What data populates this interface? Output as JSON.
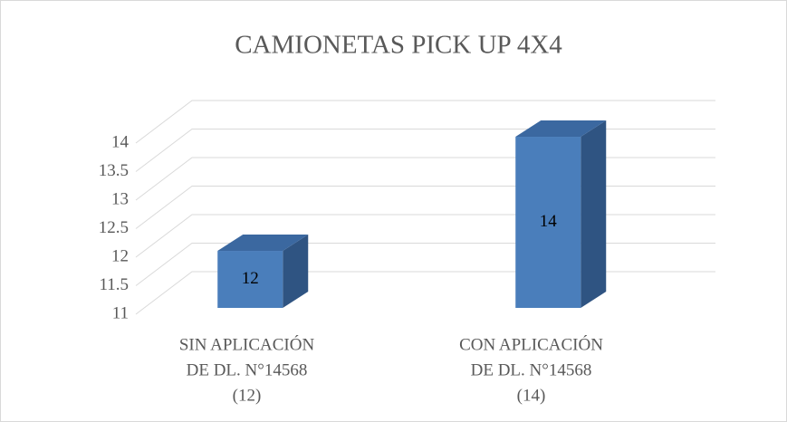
{
  "chart_data": {
    "type": "bar3d",
    "title": "CAMIONETAS PICK UP 4X4",
    "categories": [
      [
        "SIN APLICACIÓN",
        "DE DL. N°14568",
        "(12)"
      ],
      [
        "CON APLICACIÓN",
        "DE DL. N°14568",
        "(14)"
      ]
    ],
    "values": [
      12,
      14
    ],
    "color": "#4a7ebb",
    "ylim": [
      11,
      14
    ],
    "yticks": [
      11,
      11.5,
      12,
      12.5,
      13,
      13.5,
      14
    ],
    "grid": true
  }
}
